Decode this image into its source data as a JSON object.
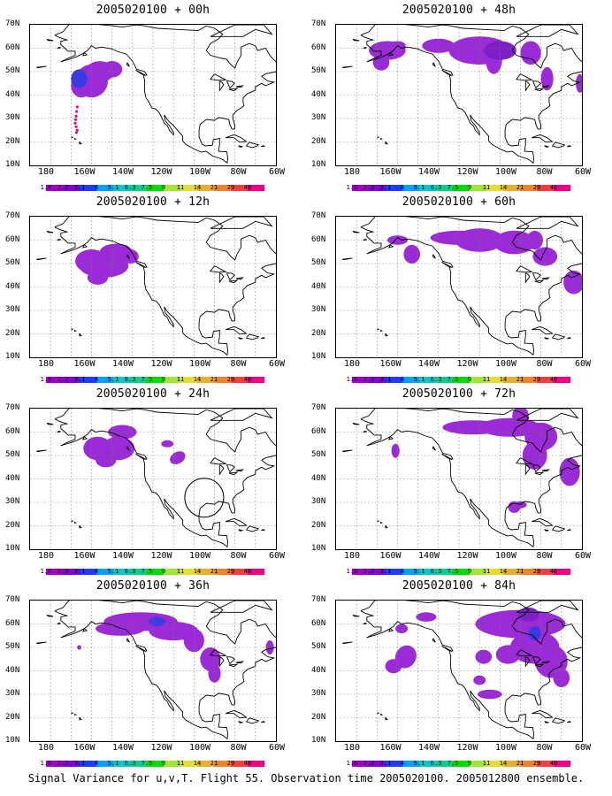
{
  "figure": {
    "caption": "Signal Variance for u,v,T. Flight 55. Observation time 2005020100. 2005012800 ensemble."
  },
  "axes": {
    "lat_labels": [
      "70N",
      "60N",
      "50N",
      "40N",
      "30N",
      "20N",
      "10N"
    ],
    "lon_labels": [
      "180",
      "160W",
      "140W",
      "120W",
      "100W",
      "80W",
      "60W"
    ],
    "lon_range": [
      -180,
      -60
    ],
    "lat_range": [
      10,
      70
    ]
  },
  "colorbar": {
    "labels": [
      "1.6",
      "2.2",
      "3.1",
      "4",
      "5.1",
      "6.3",
      "7.5",
      "9",
      "11",
      "14",
      "21",
      "29",
      "40"
    ],
    "colors": [
      "#a000c8",
      "#8200dc",
      "#1e3cff",
      "#00a0ff",
      "#00c8c8",
      "#00d28c",
      "#00dc00",
      "#a0e632",
      "#e6dc32",
      "#e6af2d",
      "#f08228",
      "#fa3c3c",
      "#f00082"
    ]
  },
  "panels": [
    {
      "title": "2005020100 + 00h"
    },
    {
      "title": "2005020100 + 48h"
    },
    {
      "title": "2005020100 + 12h"
    },
    {
      "title": "2005020100 + 60h"
    },
    {
      "title": "2005020100 + 24h"
    },
    {
      "title": "2005020100 + 72h"
    },
    {
      "title": "2005020100 + 36h"
    },
    {
      "title": "2005020100 + 84h"
    }
  ],
  "chart_data": {
    "type": "map",
    "variable": "Signal Variance for u,v,T",
    "flight": "55",
    "observation_time": "2005020100",
    "ensemble": "2005012800",
    "lead_times_h": [
      0,
      48,
      12,
      60,
      24,
      72,
      36,
      84
    ],
    "contour_levels": [
      1.6,
      2.2,
      3.1,
      4,
      5.1,
      6.3,
      7.5,
      9,
      11,
      14,
      21,
      29,
      40
    ],
    "grid": true
  }
}
